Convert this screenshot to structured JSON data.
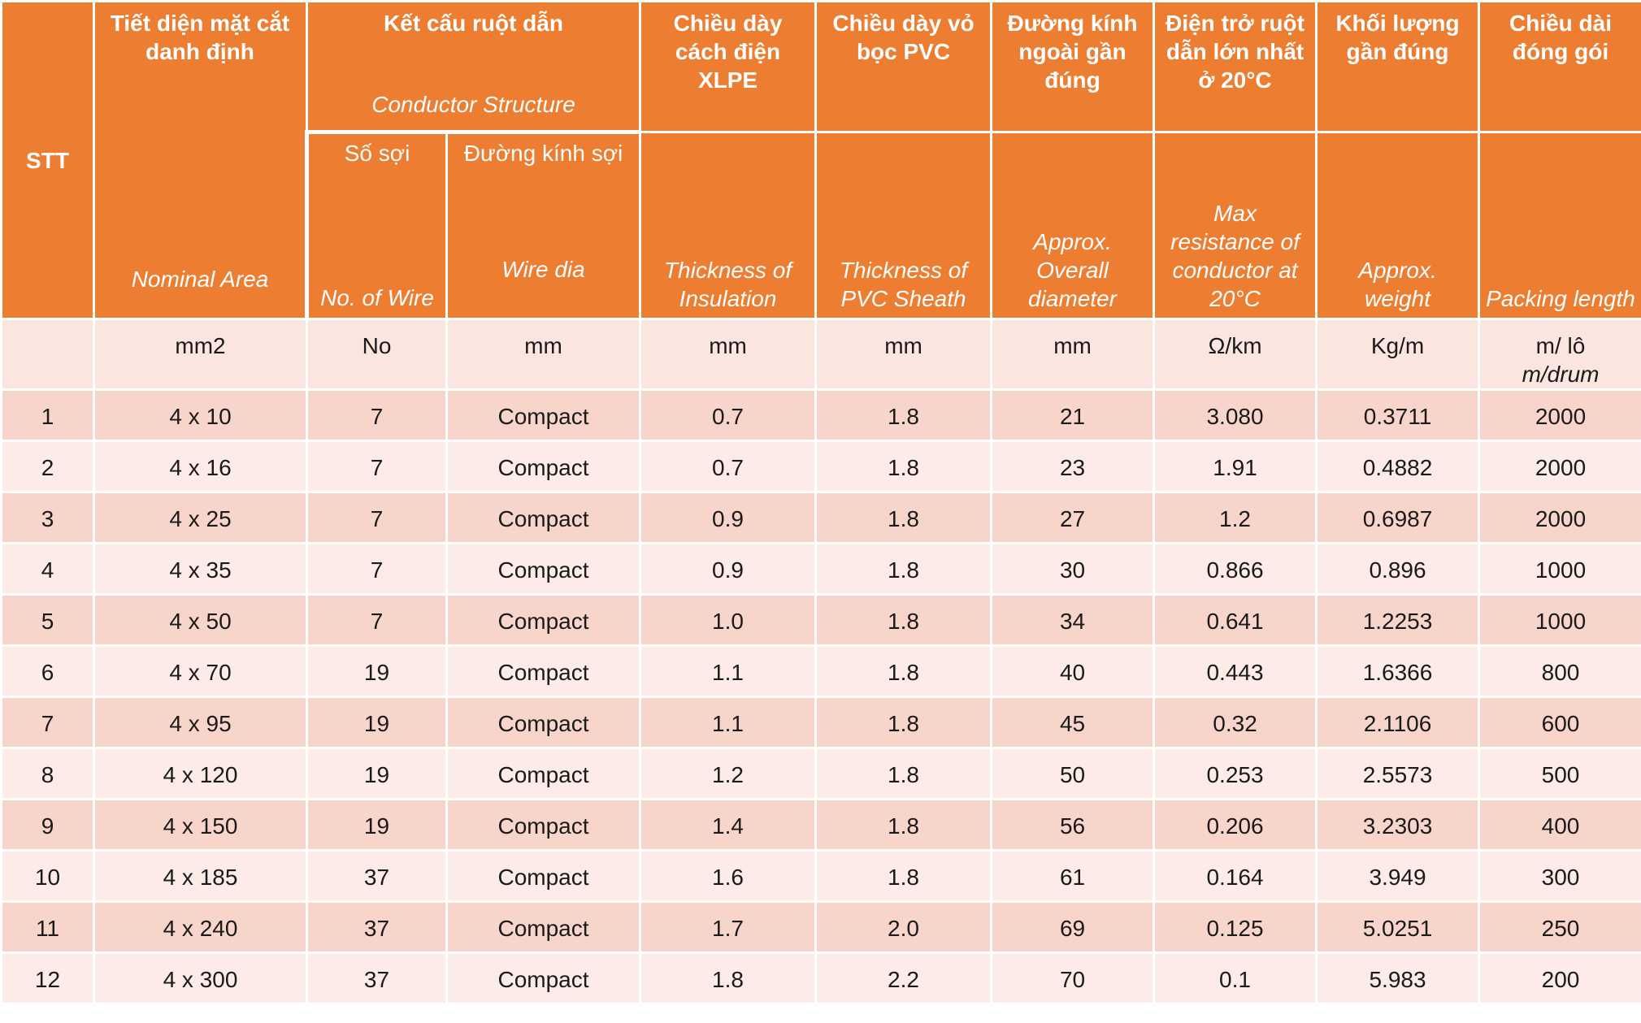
{
  "header": {
    "stt": "STT",
    "area_vn": "Tiết diện mặt cắt danh định",
    "area_en": "Nominal Area",
    "structure_vn": "Kết cấu ruột dẫn",
    "structure_en": "Conductor Structure",
    "wires_vn": "Số sợi",
    "wires_en": "No. of Wire",
    "wire_dia_vn": "Đường kính sợi",
    "wire_dia_en": "Wire dia",
    "insulation_vn": "Chiều dày cách điện XLPE",
    "insulation_en": "Thickness of Insulation",
    "sheath_vn": "Chiều dày vỏ bọc PVC",
    "sheath_en": "Thickness of PVC Sheath",
    "diameter_vn": "Đường kính ngoài gần đúng",
    "diameter_en": "Approx. Overall diameter",
    "resistance_vn": "Điện trở ruột dẫn lớn nhất ở 20°C",
    "resistance_en": "Max resistance of conductor at 20°C",
    "weight_vn": "Khối lượng gần đúng",
    "weight_en": "Approx. weight",
    "length_vn": "Chiều dài đóng gói",
    "length_en": "Packing length"
  },
  "units": {
    "stt": "",
    "area": "mm2",
    "wires": "No",
    "wire_dia": "mm",
    "insulation": "mm",
    "sheath": "mm",
    "diameter": "mm",
    "resistance": "Ω/km",
    "weight": "Kg/m",
    "length_line1": "m/ lô",
    "length_line2": "m/drum"
  },
  "rows": [
    [
      "1",
      "4 x 10",
      "7",
      "Compact",
      "0.7",
      "1.8",
      "21",
      "3.080",
      "0.3711",
      "2000"
    ],
    [
      "2",
      "4 x 16",
      "7",
      "Compact",
      "0.7",
      "1.8",
      "23",
      "1.91",
      "0.4882",
      "2000"
    ],
    [
      "3",
      "4 x 25",
      "7",
      "Compact",
      "0.9",
      "1.8",
      "27",
      "1.2",
      "0.6987",
      "2000"
    ],
    [
      "4",
      "4 x 35",
      "7",
      "Compact",
      "0.9",
      "1.8",
      "30",
      "0.866",
      "0.896",
      "1000"
    ],
    [
      "5",
      "4 x 50",
      "7",
      "Compact",
      "1.0",
      "1.8",
      "34",
      "0.641",
      "1.2253",
      "1000"
    ],
    [
      "6",
      "4 x 70",
      "19",
      "Compact",
      "1.1",
      "1.8",
      "40",
      "0.443",
      "1.6366",
      "800"
    ],
    [
      "7",
      "4 x 95",
      "19",
      "Compact",
      "1.1",
      "1.8",
      "45",
      "0.32",
      "2.1106",
      "600"
    ],
    [
      "8",
      "4 x 120",
      "19",
      "Compact",
      "1.2",
      "1.8",
      "50",
      "0.253",
      "2.5573",
      "500"
    ],
    [
      "9",
      "4 x 150",
      "19",
      "Compact",
      "1.4",
      "1.8",
      "56",
      "0.206",
      "3.2303",
      "400"
    ],
    [
      "10",
      "4 x 185",
      "37",
      "Compact",
      "1.6",
      "1.8",
      "61",
      "0.164",
      "3.949",
      "300"
    ],
    [
      "11",
      "4 x 240",
      "37",
      "Compact",
      "1.7",
      "2.0",
      "69",
      "0.125",
      "5.0251",
      "250"
    ],
    [
      "12",
      "4 x 300",
      "37",
      "Compact",
      "1.8",
      "2.2",
      "70",
      "0.1",
      "5.983",
      "200"
    ]
  ],
  "colors": {
    "header_bg": "#ED7D31",
    "row_odd_bg": "#F8D5CA",
    "row_even_bg": "#FCEBE6",
    "units_bg": "#FBE5DF"
  }
}
